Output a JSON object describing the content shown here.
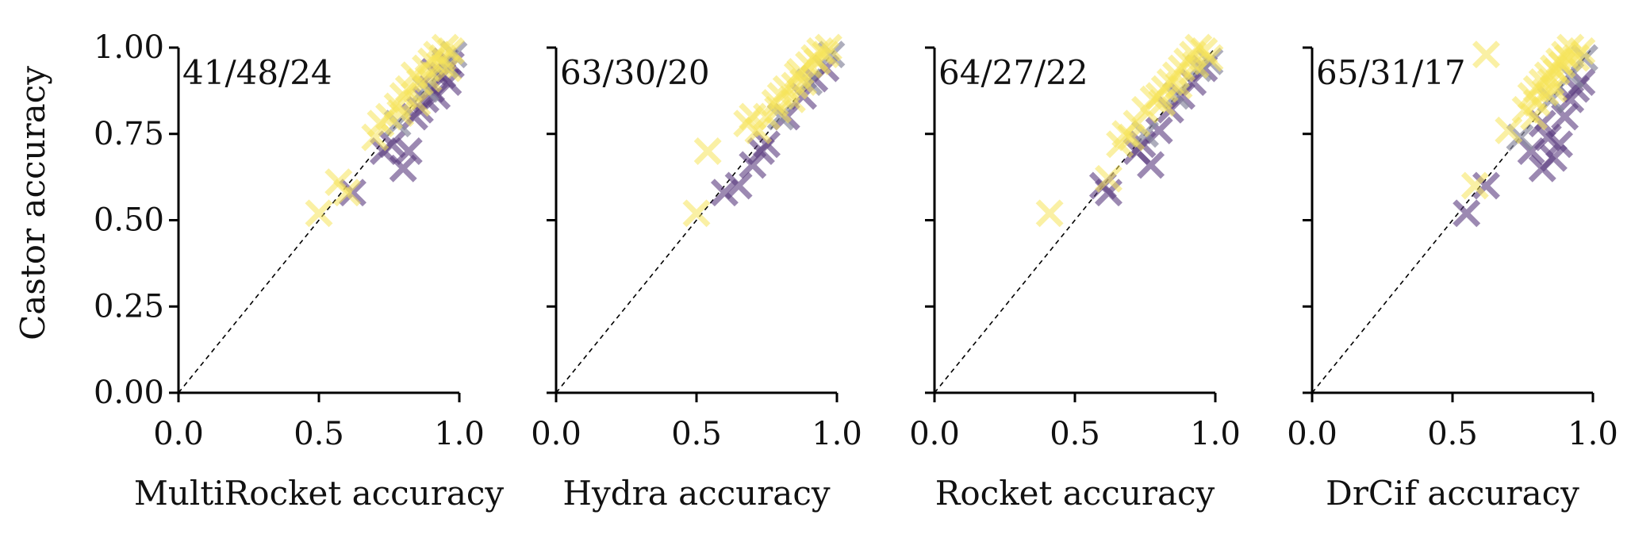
{
  "chart_data": {
    "type": "scatter",
    "shared_y_label": "Castor accuracy",
    "xlim": [
      0,
      1
    ],
    "ylim": [
      0,
      1
    ],
    "x_ticks": [
      "0.0",
      "0.5",
      "1.0"
    ],
    "y_ticks": [
      "0.00",
      "0.25",
      "0.50",
      "0.75",
      "1.00"
    ],
    "colors": {
      "castor_better": "#f5e35a",
      "other_better": "#5a3a7e",
      "tie": "#8a8aa0"
    },
    "panels": [
      {
        "xlabel": "MultiRocket accuracy",
        "annotation": "41/48/24",
        "castor_better": [
          [
            0.5,
            0.52
          ],
          [
            0.57,
            0.61
          ],
          [
            0.6,
            0.58
          ],
          [
            0.7,
            0.74
          ],
          [
            0.72,
            0.78
          ],
          [
            0.75,
            0.8
          ],
          [
            0.78,
            0.83
          ],
          [
            0.8,
            0.86
          ],
          [
            0.82,
            0.88
          ],
          [
            0.84,
            0.92
          ],
          [
            0.86,
            0.9
          ],
          [
            0.88,
            0.94
          ],
          [
            0.9,
            0.96
          ],
          [
            0.92,
            0.98
          ],
          [
            0.94,
            0.97
          ],
          [
            0.95,
            1.0
          ],
          [
            0.97,
            0.99
          ],
          [
            0.85,
            0.84
          ],
          [
            0.89,
            0.91
          ],
          [
            0.93,
            0.95
          ],
          [
            0.96,
            0.94
          ],
          [
            0.79,
            0.81
          ]
        ],
        "other_better": [
          [
            0.62,
            0.58
          ],
          [
            0.73,
            0.7
          ],
          [
            0.76,
            0.72
          ],
          [
            0.8,
            0.65
          ],
          [
            0.82,
            0.7
          ],
          [
            0.84,
            0.8
          ],
          [
            0.86,
            0.82
          ],
          [
            0.88,
            0.85
          ],
          [
            0.9,
            0.88
          ],
          [
            0.92,
            0.86
          ],
          [
            0.94,
            0.92
          ],
          [
            0.96,
            0.9
          ],
          [
            0.97,
            0.95
          ],
          [
            0.91,
            0.93
          ],
          [
            0.95,
            0.96
          ]
        ],
        "ties": [
          [
            0.78,
            0.78
          ],
          [
            0.88,
            0.88
          ],
          [
            0.95,
            0.95
          ],
          [
            0.98,
            0.98
          ]
        ]
      },
      {
        "xlabel": "Hydra accuracy",
        "annotation": "63/30/20",
        "castor_better": [
          [
            0.5,
            0.52
          ],
          [
            0.54,
            0.7
          ],
          [
            0.68,
            0.78
          ],
          [
            0.7,
            0.8
          ],
          [
            0.72,
            0.76
          ],
          [
            0.75,
            0.8
          ],
          [
            0.78,
            0.84
          ],
          [
            0.8,
            0.86
          ],
          [
            0.82,
            0.88
          ],
          [
            0.84,
            0.85
          ],
          [
            0.86,
            0.92
          ],
          [
            0.88,
            0.9
          ],
          [
            0.9,
            0.95
          ],
          [
            0.92,
            0.97
          ],
          [
            0.94,
            0.99
          ],
          [
            0.96,
            0.98
          ],
          [
            0.85,
            0.89
          ],
          [
            0.79,
            0.82
          ],
          [
            0.87,
            0.93
          ],
          [
            0.93,
            0.96
          ],
          [
            0.97,
            1.0
          ]
        ],
        "other_better": [
          [
            0.6,
            0.58
          ],
          [
            0.65,
            0.6
          ],
          [
            0.7,
            0.66
          ],
          [
            0.75,
            0.72
          ],
          [
            0.82,
            0.8
          ],
          [
            0.88,
            0.86
          ],
          [
            0.92,
            0.91
          ],
          [
            0.96,
            0.94
          ],
          [
            0.73,
            0.7
          ]
        ],
        "ties": [
          [
            0.8,
            0.8
          ],
          [
            0.9,
            0.9
          ],
          [
            0.98,
            0.98
          ]
        ]
      },
      {
        "xlabel": "Rocket accuracy",
        "annotation": "64/27/22",
        "castor_better": [
          [
            0.41,
            0.52
          ],
          [
            0.62,
            0.62
          ],
          [
            0.66,
            0.72
          ],
          [
            0.68,
            0.75
          ],
          [
            0.72,
            0.78
          ],
          [
            0.75,
            0.82
          ],
          [
            0.78,
            0.85
          ],
          [
            0.8,
            0.86
          ],
          [
            0.82,
            0.88
          ],
          [
            0.84,
            0.9
          ],
          [
            0.86,
            0.92
          ],
          [
            0.88,
            0.94
          ],
          [
            0.9,
            0.96
          ],
          [
            0.92,
            0.98
          ],
          [
            0.94,
            1.0
          ],
          [
            0.96,
            0.99
          ],
          [
            0.98,
            0.97
          ],
          [
            0.7,
            0.74
          ],
          [
            0.81,
            0.84
          ],
          [
            0.87,
            0.89
          ],
          [
            0.93,
            0.95
          ]
        ],
        "other_better": [
          [
            0.6,
            0.6
          ],
          [
            0.62,
            0.58
          ],
          [
            0.72,
            0.7
          ],
          [
            0.77,
            0.66
          ],
          [
            0.8,
            0.76
          ],
          [
            0.84,
            0.82
          ],
          [
            0.88,
            0.86
          ],
          [
            0.92,
            0.9
          ],
          [
            0.96,
            0.94
          ],
          [
            0.74,
            0.72
          ]
        ],
        "ties": [
          [
            0.75,
            0.75
          ],
          [
            0.86,
            0.86
          ],
          [
            0.94,
            0.94
          ],
          [
            0.98,
            0.96
          ]
        ]
      },
      {
        "xlabel": "DrCif accuracy",
        "annotation": "65/31/17",
        "castor_better": [
          [
            0.58,
            0.6
          ],
          [
            0.62,
            0.98
          ],
          [
            0.7,
            0.76
          ],
          [
            0.76,
            0.82
          ],
          [
            0.78,
            0.86
          ],
          [
            0.8,
            0.88
          ],
          [
            0.82,
            0.9
          ],
          [
            0.84,
            0.92
          ],
          [
            0.86,
            0.94
          ],
          [
            0.88,
            0.96
          ],
          [
            0.9,
            0.98
          ],
          [
            0.92,
            1.0
          ],
          [
            0.94,
            0.97
          ],
          [
            0.96,
            0.99
          ],
          [
            0.8,
            0.84
          ],
          [
            0.83,
            0.87
          ],
          [
            0.85,
            0.9
          ],
          [
            0.87,
            0.93
          ],
          [
            0.89,
            0.95
          ],
          [
            0.91,
            0.97
          ],
          [
            0.79,
            0.8
          ],
          [
            0.86,
            0.88
          ]
        ],
        "other_better": [
          [
            0.55,
            0.52
          ],
          [
            0.62,
            0.6
          ],
          [
            0.78,
            0.7
          ],
          [
            0.82,
            0.65
          ],
          [
            0.84,
            0.74
          ],
          [
            0.86,
            0.68
          ],
          [
            0.88,
            0.72
          ],
          [
            0.9,
            0.8
          ],
          [
            0.92,
            0.85
          ],
          [
            0.94,
            0.88
          ],
          [
            0.96,
            0.9
          ],
          [
            0.82,
            0.78
          ]
        ],
        "ties": [
          [
            0.74,
            0.74
          ],
          [
            0.85,
            0.85
          ],
          [
            0.92,
            0.92
          ],
          [
            0.97,
            0.97
          ]
        ]
      }
    ]
  }
}
